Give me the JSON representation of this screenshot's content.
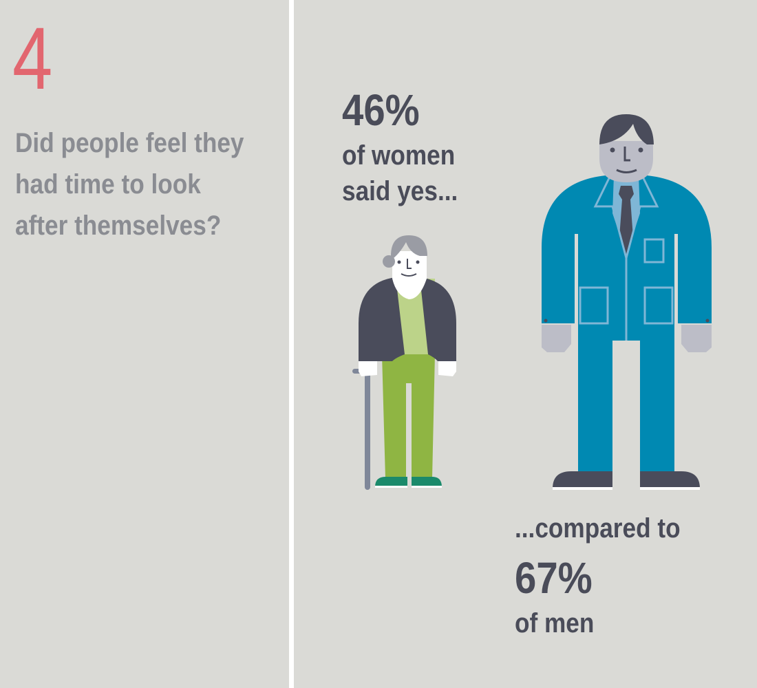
{
  "panel": {
    "number": "4",
    "question_lines": [
      "Did people feel they",
      "had time to look",
      "after themselves?"
    ]
  },
  "women": {
    "value": "46%",
    "lines": [
      "of women",
      "said yes..."
    ],
    "percent": 46
  },
  "men": {
    "intro": "...compared to",
    "value": "67%",
    "caption": "of men",
    "percent": 67
  },
  "colors": {
    "accent": "#e2666f",
    "text": "#4a4c59",
    "question": "#8a8c92",
    "suit": "#0089b2",
    "pants_women": "#8fb543",
    "background": "#dadad6"
  }
}
